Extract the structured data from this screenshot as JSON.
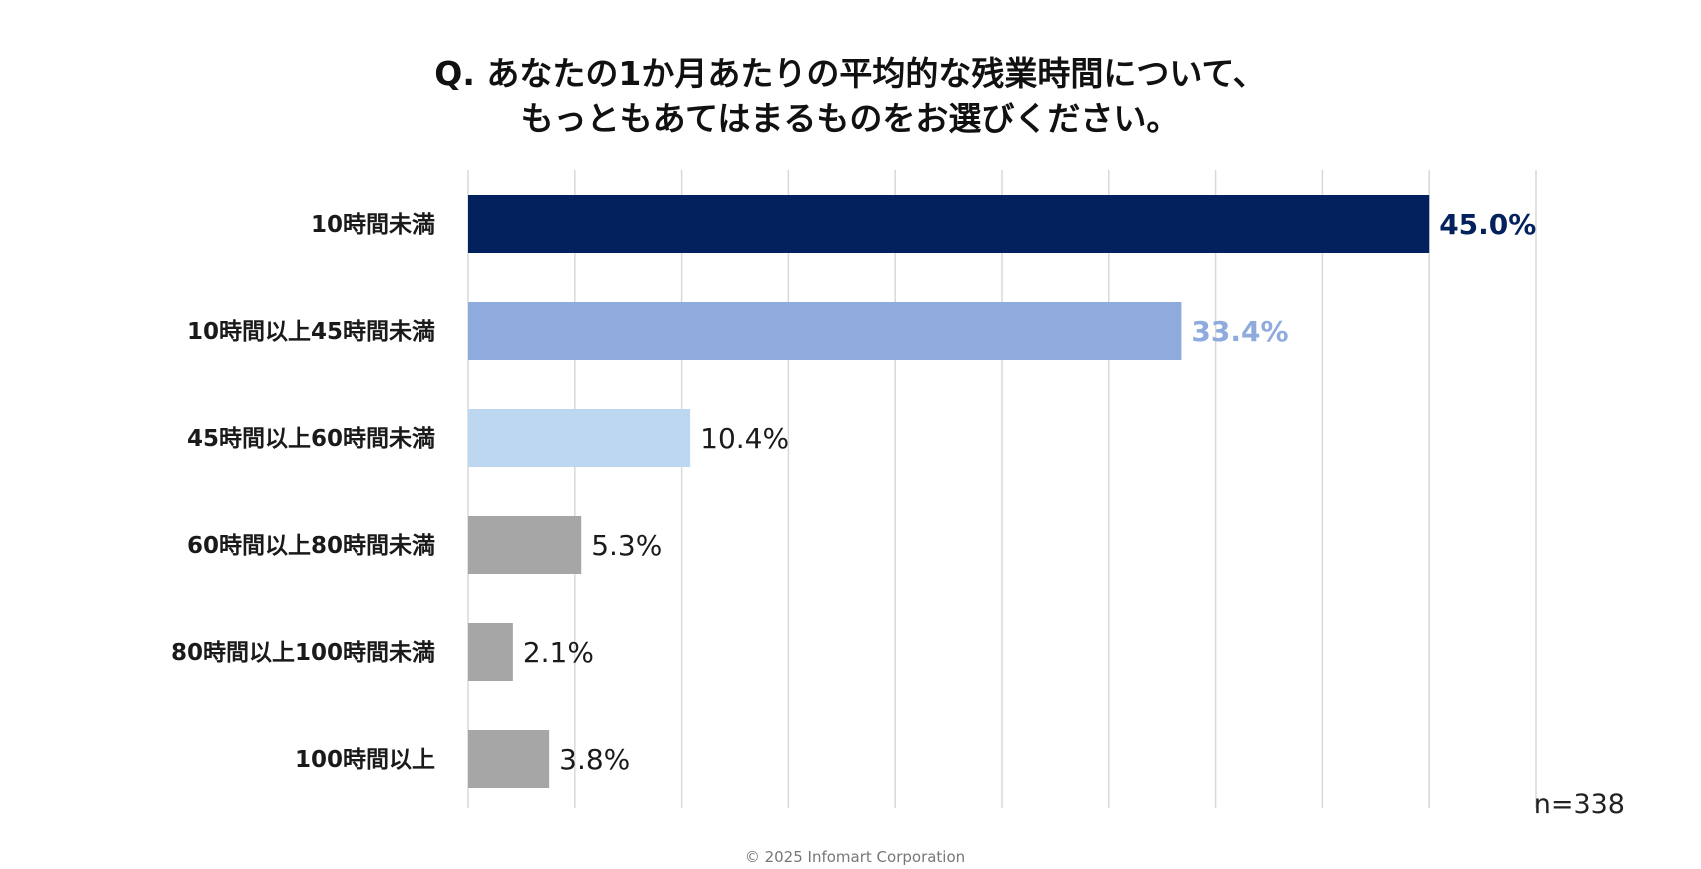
{
  "chart_data": {
    "type": "bar",
    "orientation": "horizontal",
    "title": [
      "Q. あなたの1か月あたりの平均的な残業時間について、",
      "もっともあてはまるものをお選びください。"
    ],
    "categories": [
      "10時間未満",
      "10時間以上45時間未満",
      "45時間以上60時間未満",
      "60時間以上80時間未満",
      "80時間以上100時間未満",
      "100時間以上"
    ],
    "values": [
      45.0,
      33.4,
      10.4,
      5.3,
      2.1,
      3.8
    ],
    "value_labels": [
      "45.0%",
      "33.4%",
      "10.4%",
      "5.3%",
      "2.1%",
      "3.8%"
    ],
    "bar_colors": [
      "#03215c",
      "#8faadc",
      "#bdd7f0",
      "#a6a6a6",
      "#a6a6a6",
      "#a6a6a6"
    ],
    "label_colors": [
      "#03215c",
      "#8faadc",
      "#1a1a1a",
      "#1a1a1a",
      "#1a1a1a",
      "#1a1a1a"
    ],
    "label_bold": [
      true,
      true,
      false,
      false,
      false,
      false
    ],
    "xlim": [
      0,
      50
    ],
    "grid": true,
    "axis_labels_shown": false
  },
  "note": "n=338",
  "copyright": "© 2025 Infomart Corporation"
}
